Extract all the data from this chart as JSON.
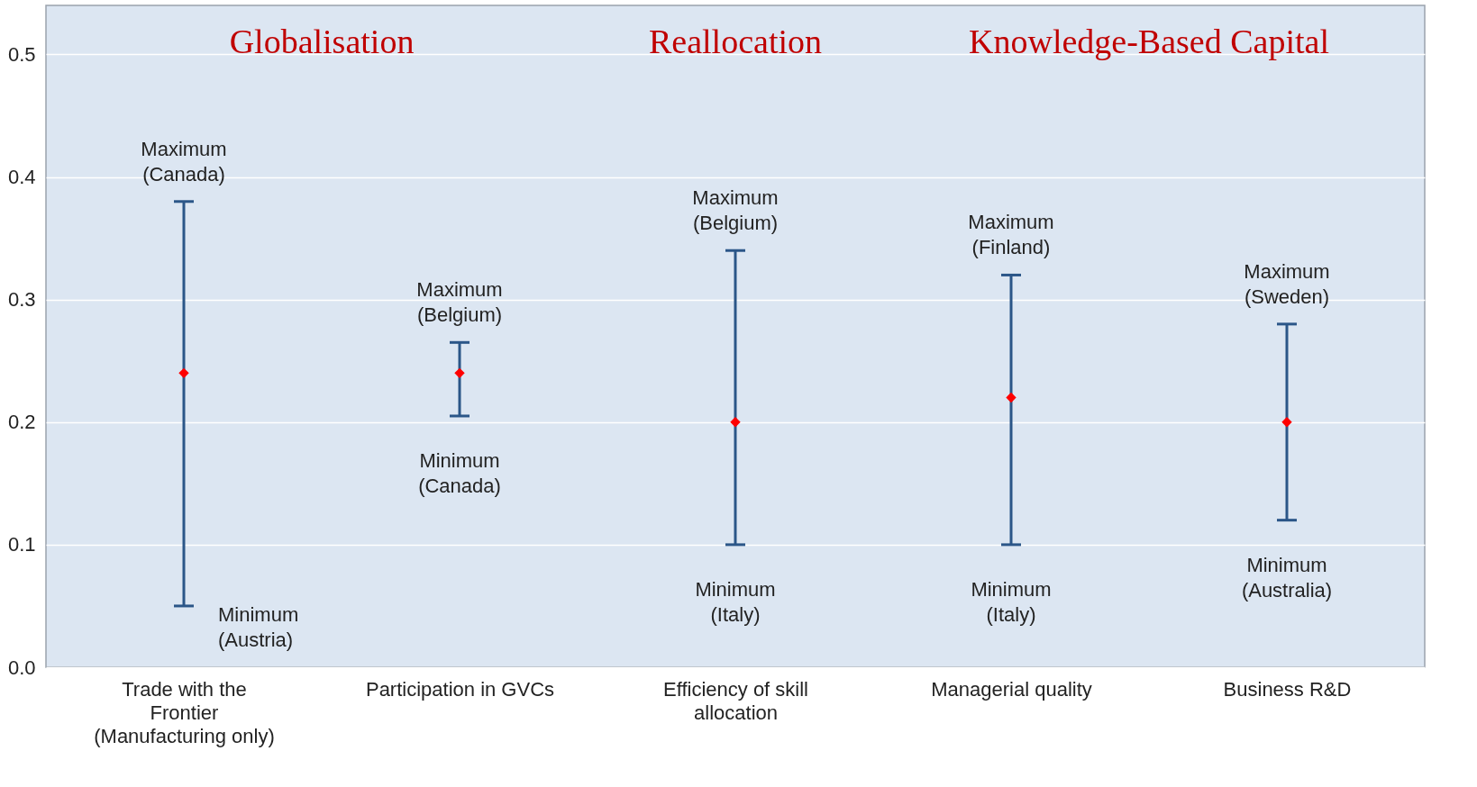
{
  "chart_data": {
    "type": "scatter",
    "marker": "diamond",
    "grid": "y",
    "categories": [
      "Trade with the Frontier (Manufacturing only)",
      "Participation in GVCs",
      "Efficiency of skill allocation",
      "Managerial quality",
      "Business R&D"
    ],
    "series": [
      {
        "color": "#ff0000",
        "values": [
          0.24,
          0.24,
          0.2,
          0.22,
          0.2
        ],
        "errors": [
          [
            0.05,
            0.38
          ],
          [
            0.205,
            0.265
          ],
          [
            0.1,
            0.34
          ],
          [
            0.1,
            0.32
          ],
          [
            0.12,
            0.28
          ]
        ]
      }
    ],
    "ylim": [
      0,
      0.54
    ],
    "yticks": [
      {
        "value": 0,
        "label": "0.0"
      },
      {
        "value": 0.1,
        "label": "0.1"
      },
      {
        "value": 0.2,
        "label": "0.2"
      },
      {
        "value": 0.3,
        "label": "0.3"
      },
      {
        "value": 0.4,
        "label": "0.4"
      },
      {
        "value": 0.5,
        "label": "0.5"
      }
    ],
    "annotations": [
      "Globalisation",
      "Reallocation",
      "Knowledge-Based Capital",
      {
        "text": "Maximum\n(Canada)",
        "x": "Trade with the Frontier (Manufacturing only)",
        "y": 0.38
      },
      {
        "text": "Minimum\n(Austria)",
        "x": "Trade with the Frontier (Manufacturing only)",
        "y": 0.05
      },
      {
        "text": "Maximum\n(Belgium)",
        "x": "Participation in GVCs",
        "y": 0.265
      },
      {
        "text": "Minimum\n(Canada)",
        "x": "Participation in GVCs",
        "y": 0.205
      },
      {
        "text": "Maximum\n(Belgium)",
        "x": "Efficiency of skill allocation",
        "y": 0.34
      },
      {
        "text": "Minimum\n(Italy)",
        "x": "Efficiency of skill allocation",
        "y": 0.1
      },
      {
        "text": "Maximum\n(Finland)",
        "x": "Managerial quality",
        "y": 0.32
      },
      {
        "text": "Minimum\n(Italy)",
        "x": "Managerial quality",
        "y": 0.1
      },
      {
        "text": "Maximum\n(Sweden)",
        "x": "Business R&D",
        "y": 0.28
      },
      {
        "text": "Minimum\n(Australia)",
        "x": "Business R&D",
        "y": 0.12
      }
    ]
  }
}
